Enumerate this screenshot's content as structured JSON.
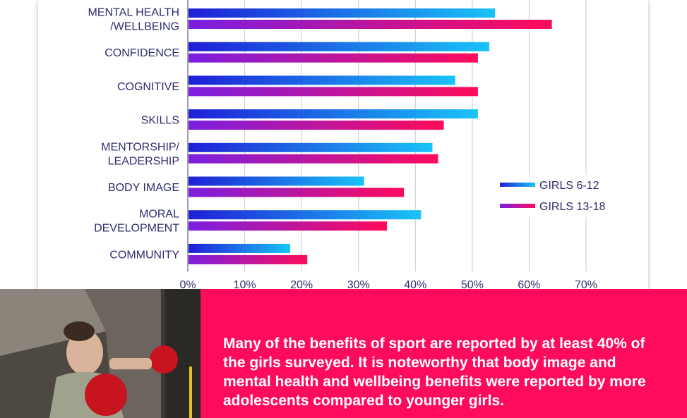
{
  "chart_data": {
    "type": "bar",
    "orientation": "horizontal",
    "categories": [
      [
        "MENTAL HEALTH",
        "/WELLBEING"
      ],
      [
        "CONFIDENCE"
      ],
      [
        "COGNITIVE"
      ],
      [
        "SKILLS"
      ],
      [
        "MENTORSHIP/",
        "LEADERSHIP"
      ],
      [
        "BODY IMAGE"
      ],
      [
        "MORAL",
        "DEVELOPMENT"
      ],
      [
        "COMMUNITY"
      ]
    ],
    "series": [
      {
        "name": "GIRLS 6-12",
        "values": [
          54,
          53,
          47,
          51,
          43,
          31,
          41,
          18
        ],
        "color_start": "#1f1fd6",
        "color_end": "#19c3f7"
      },
      {
        "name": "GIRLS 13-18",
        "values": [
          64,
          51,
          51,
          45,
          44,
          38,
          35,
          21
        ],
        "color_start": "#7a1fe0",
        "color_end": "#fe0b5b"
      }
    ],
    "xlim": [
      0,
      70
    ],
    "xticks": [
      "0%",
      "10%",
      "20%",
      "30%",
      "40%",
      "50%",
      "60%",
      "70%"
    ],
    "grid": "vertical",
    "legend": "right"
  },
  "caption": "Many of the benefits of sport are reported by at least 40% of the girls surveyed. It is noteworthy that body image and mental health and wellbeing benefits were reported by more adolescents compared to younger girls.",
  "colors": {
    "accent_pink": "#fe0b5b",
    "text_navy": "#2e2d6e",
    "grid": "#c9c9c9"
  },
  "photo": {
    "icon": "boxer-photo"
  }
}
